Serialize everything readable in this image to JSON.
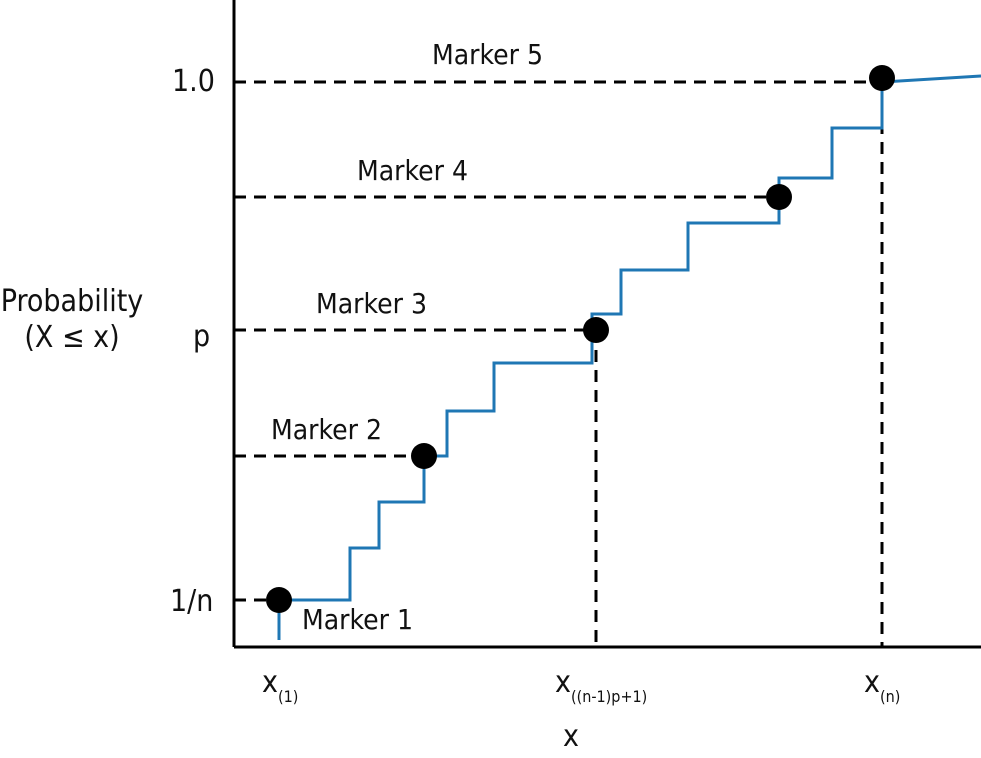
{
  "diagram": {
    "y_label_line1": "Probability",
    "y_label_line2": "(X ≤ x)",
    "x_label": "x",
    "y_ticks": {
      "top": "1.0",
      "middle": "p",
      "bottom": "1/n"
    },
    "x_ticks": [
      {
        "base": "x",
        "sub": "(1)"
      },
      {
        "base": "x",
        "sub": "((n-1)p+1)"
      },
      {
        "base": "x",
        "sub": "(n)"
      }
    ],
    "markers": [
      "Marker 1",
      "Marker 2",
      "Marker 3",
      "Marker 4",
      "Marker 5"
    ],
    "colors": {
      "step_line": "#1f77b4",
      "axis": "#000000",
      "dashed": "#000000",
      "marker_dot": "#000000"
    }
  }
}
